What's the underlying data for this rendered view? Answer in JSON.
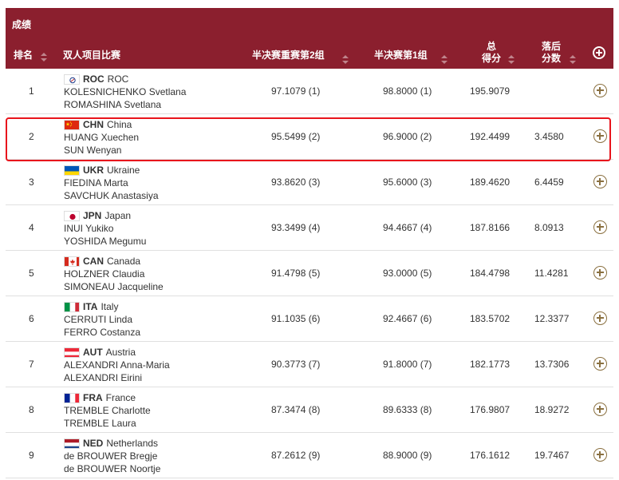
{
  "title": "成绩",
  "columns": {
    "rank": "排名",
    "event": "双人项目比赛",
    "semi2": "半决赛重赛第2组",
    "semi1": "半决赛第1组",
    "total_line1": "总",
    "total_line2": "得分",
    "behind_line1": "落后",
    "behind_line2": "分数"
  },
  "rows": [
    {
      "rank": "1",
      "code": "ROC",
      "country": "ROC",
      "flag": "roc",
      "athlete1": "KOLESNICHENKO Svetlana",
      "athlete2": "ROMASHINA Svetlana",
      "semi2": "97.1079 (1)",
      "semi1": "98.8000 (1)",
      "total": "195.9079",
      "behind": ""
    },
    {
      "rank": "2",
      "code": "CHN",
      "country": "China",
      "flag": "chn",
      "athlete1": "HUANG Xuechen",
      "athlete2": "SUN Wenyan",
      "semi2": "95.5499 (2)",
      "semi1": "96.9000 (2)",
      "total": "192.4499",
      "behind": "3.4580"
    },
    {
      "rank": "3",
      "code": "UKR",
      "country": "Ukraine",
      "flag": "ukr",
      "athlete1": "FIEDINA Marta",
      "athlete2": "SAVCHUK Anastasiya",
      "semi2": "93.8620 (3)",
      "semi1": "95.6000 (3)",
      "total": "189.4620",
      "behind": "6.4459"
    },
    {
      "rank": "4",
      "code": "JPN",
      "country": "Japan",
      "flag": "jpn",
      "athlete1": "INUI Yukiko",
      "athlete2": "YOSHIDA Megumu",
      "semi2": "93.3499 (4)",
      "semi1": "94.4667 (4)",
      "total": "187.8166",
      "behind": "8.0913"
    },
    {
      "rank": "5",
      "code": "CAN",
      "country": "Canada",
      "flag": "can",
      "athlete1": "HOLZNER Claudia",
      "athlete2": "SIMONEAU Jacqueline",
      "semi2": "91.4798 (5)",
      "semi1": "93.0000 (5)",
      "total": "184.4798",
      "behind": "11.4281"
    },
    {
      "rank": "6",
      "code": "ITA",
      "country": "Italy",
      "flag": "ita",
      "athlete1": "CERRUTI Linda",
      "athlete2": "FERRO Costanza",
      "semi2": "91.1035 (6)",
      "semi1": "92.4667 (6)",
      "total": "183.5702",
      "behind": "12.3377"
    },
    {
      "rank": "7",
      "code": "AUT",
      "country": "Austria",
      "flag": "aut",
      "athlete1": "ALEXANDRI Anna-Maria",
      "athlete2": "ALEXANDRI Eirini",
      "semi2": "90.3773 (7)",
      "semi1": "91.8000 (7)",
      "total": "182.1773",
      "behind": "13.7306"
    },
    {
      "rank": "8",
      "code": "FRA",
      "country": "France",
      "flag": "fra",
      "athlete1": "TREMBLE Charlotte",
      "athlete2": "TREMBLE Laura",
      "semi2": "87.3474 (8)",
      "semi1": "89.6333 (8)",
      "total": "176.9807",
      "behind": "18.9272"
    },
    {
      "rank": "9",
      "code": "NED",
      "country": "Netherlands",
      "flag": "ned",
      "athlete1": "de BROUWER Bregje",
      "athlete2": "de BROUWER Noortje",
      "semi2": "87.2612 (9)",
      "semi1": "88.9000 (9)",
      "total": "176.1612",
      "behind": "19.7467"
    }
  ],
  "colors": {
    "header_bg": "#8b1f2e",
    "highlight": "#e8141c",
    "plus_icon": "#8a7040"
  }
}
